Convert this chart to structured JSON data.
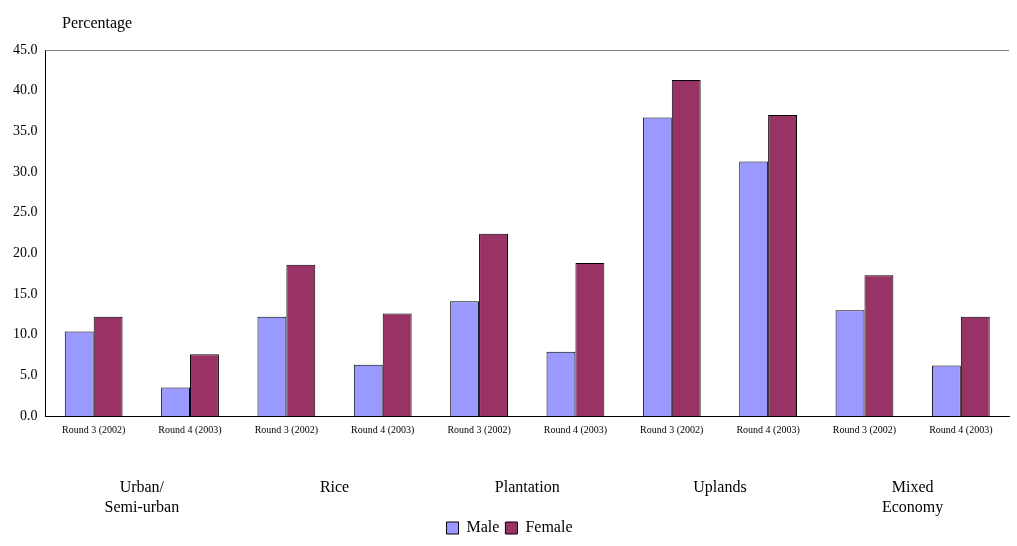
{
  "chart_data": {
    "type": "bar",
    "ylabel": "Percentage",
    "categories": [
      "Round 3 (2002)",
      "Round 4 (2003)",
      "Round 3 (2002)",
      "Round 4 (2003)",
      "Round 3 (2002)",
      "Round 4 (2003)",
      "Round 3 (2002)",
      "Round 4 (2003)",
      "Round 3 (2002)",
      "Round 4 (2003)"
    ],
    "series": [
      {
        "name": "Male",
        "color": "#9999ff",
        "values": [
          10.4,
          3.5,
          12.2,
          6.3,
          14.1,
          7.9,
          36.7,
          31.3,
          13.0,
          6.2
        ]
      },
      {
        "name": "Female",
        "color": "#993366",
        "values": [
          12.2,
          7.6,
          18.6,
          12.6,
          22.4,
          18.8,
          41.3,
          37.0,
          17.3,
          12.2
        ]
      }
    ],
    "annotations": [
      "Urban/ Semi-urban",
      "Rice",
      "Plantation",
      "Uplands",
      "Mixed Economy"
    ],
    "ylim": [
      0,
      45
    ],
    "yticks": [
      {
        "value": 0,
        "label": "0.0"
      },
      {
        "value": 5,
        "label": "5.0"
      },
      {
        "value": 10,
        "label": "10.0"
      },
      {
        "value": 15,
        "label": "15.0"
      },
      {
        "value": 20,
        "label": "20.0"
      },
      {
        "value": 25,
        "label": "25.0"
      },
      {
        "value": 30,
        "label": "30.0"
      },
      {
        "value": 35,
        "label": "35.0"
      },
      {
        "value": 40,
        "label": "40.0"
      },
      {
        "value": 45,
        "label": "45.0"
      }
    ],
    "grid": false,
    "legend": "bottom"
  }
}
